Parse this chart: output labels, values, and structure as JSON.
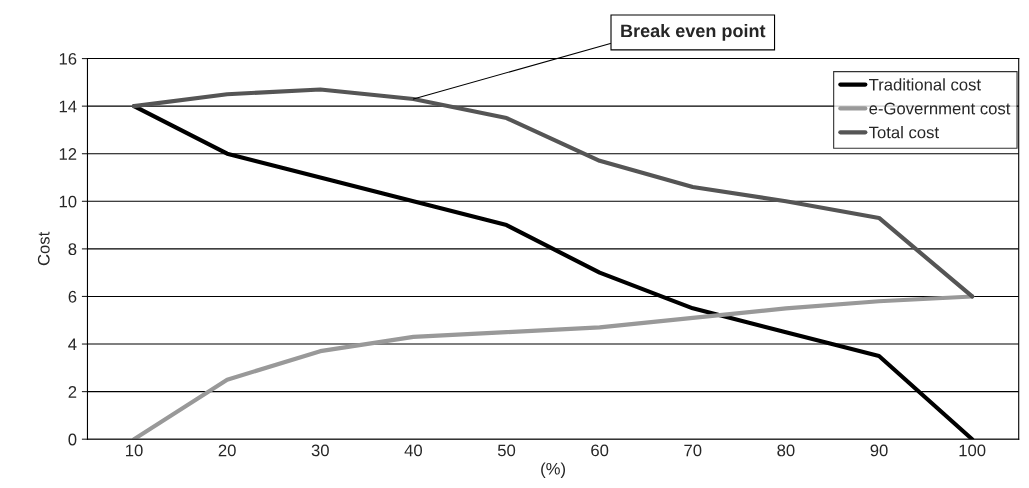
{
  "chart_data": {
    "type": "line",
    "xlabel": "(%)",
    "ylabel": "Cost",
    "categories": [
      "10",
      "20",
      "30",
      "40",
      "50",
      "60",
      "70",
      "80",
      "90",
      "100"
    ],
    "series": [
      {
        "name": "Traditional cost",
        "color": "#000000",
        "values": [
          14,
          12,
          11,
          10,
          9,
          7,
          5.5,
          4.5,
          3.5,
          0
        ]
      },
      {
        "name": "e-Government cost",
        "color": "#999999",
        "values": [
          0,
          2.5,
          3.7,
          4.3,
          4.5,
          4.7,
          5.1,
          5.5,
          5.8,
          6
        ]
      },
      {
        "name": "Total cost",
        "color": "#555555",
        "values": [
          14,
          14.5,
          14.7,
          14.3,
          13.5,
          11.7,
          10.6,
          10,
          9.3,
          6
        ]
      }
    ],
    "ylim": [
      0,
      16
    ],
    "yticks": [
      0,
      2,
      4,
      6,
      8,
      10,
      12,
      14,
      16
    ],
    "grid": "y",
    "legend": "top right",
    "marker": "none",
    "line_style": "solid",
    "annotations": [
      {
        "text": "Break even point",
        "x": "40",
        "y": 14.3
      }
    ]
  }
}
